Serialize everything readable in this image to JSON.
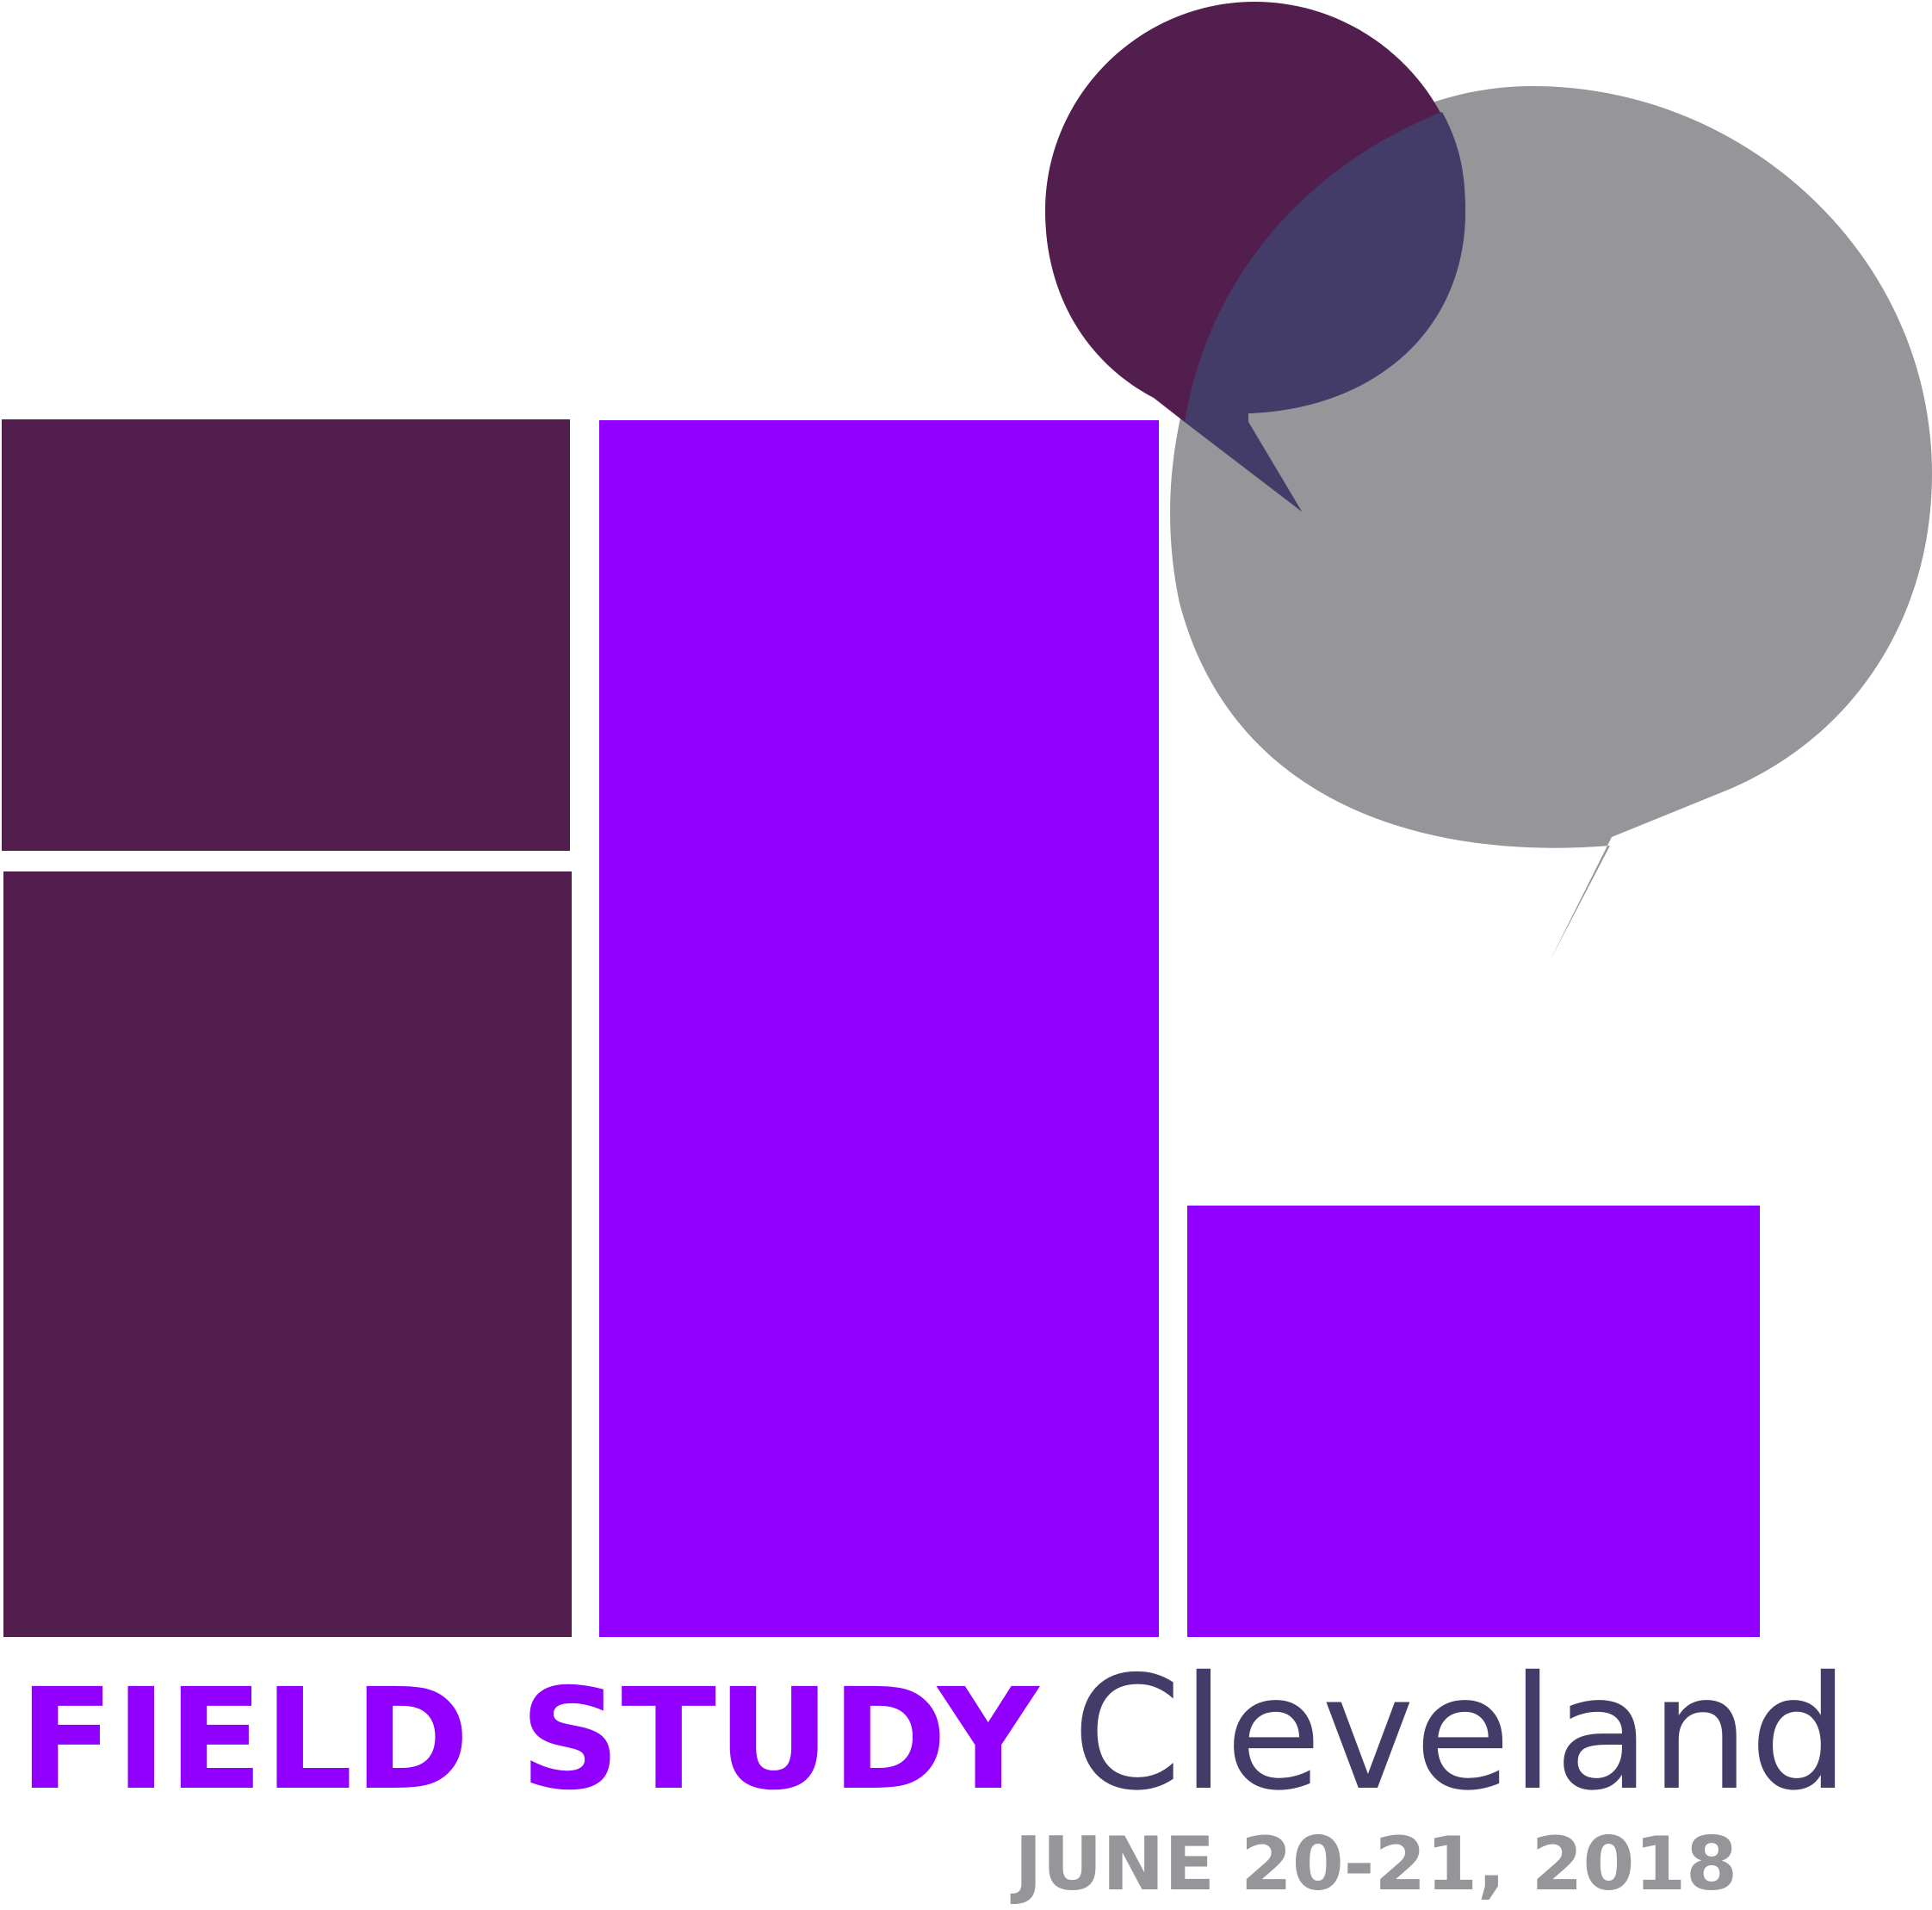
{
  "event": {
    "name": "FIELD STUDY",
    "city": "Cleveland",
    "dates": "JUNE 20-21, 2018"
  },
  "colors": {
    "plum": "#521e4e",
    "violet": "#9100ff",
    "gray": "#96969a",
    "overlap": "#433c69",
    "city_text": "#433c69",
    "date_text": "#96969a",
    "title_text": "#9100ff",
    "background": "#ffffff"
  },
  "logo": {
    "shapes": [
      "plum-block-top",
      "plum-block-bottom",
      "violet-block-tall",
      "violet-block-short",
      "small-speech-bubble-icon",
      "large-speech-bubble-icon"
    ]
  }
}
